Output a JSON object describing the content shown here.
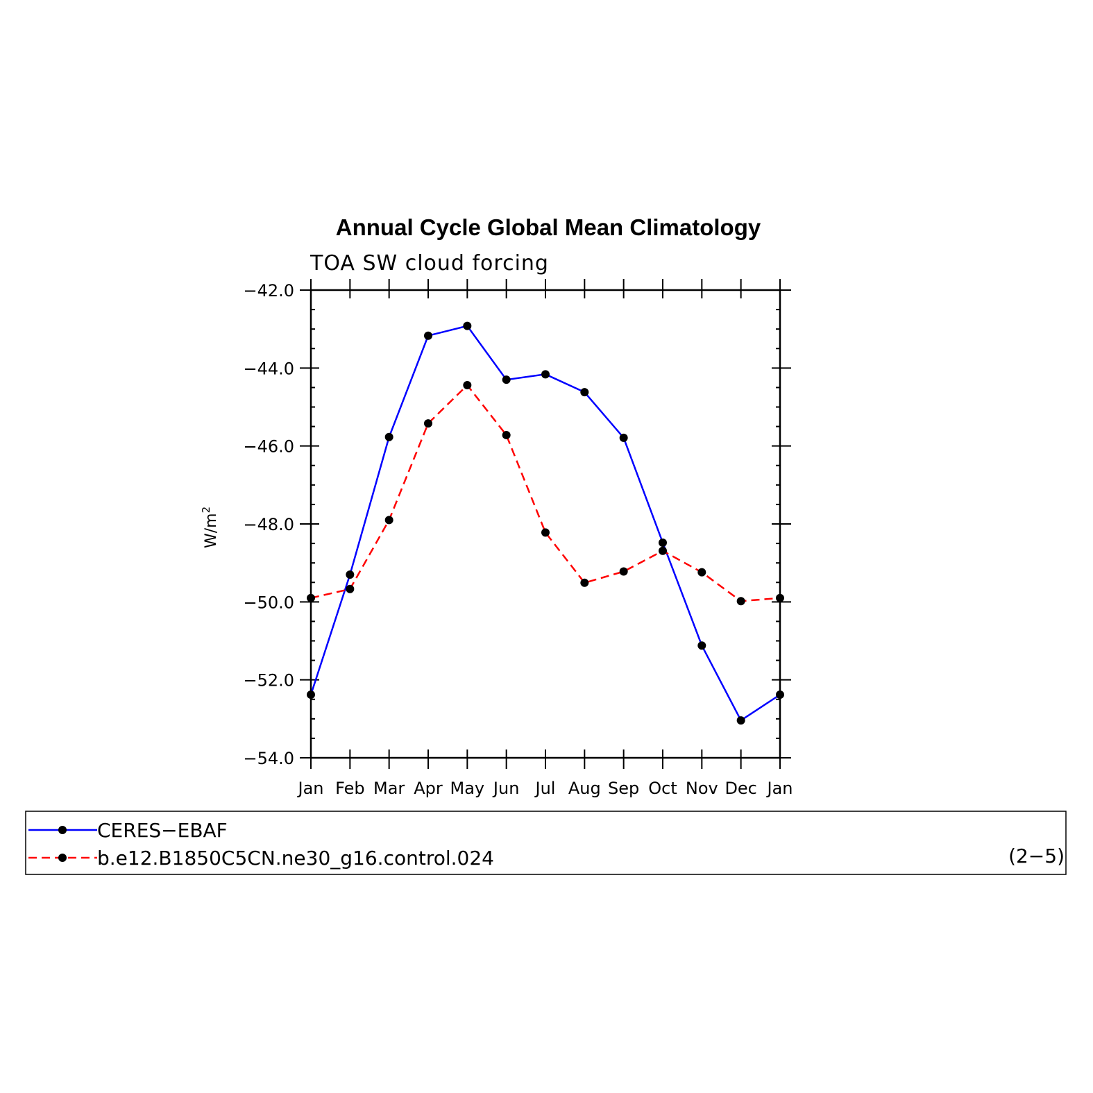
{
  "chart_data": {
    "type": "line",
    "title": "Annual Cycle Global Mean Climatology",
    "subtitle": "TOA SW cloud forcing",
    "ylabel": "W/m",
    "ylabel_sup": "2",
    "ylim": [
      -54.0,
      -42.0
    ],
    "yticks": [
      -42.0,
      -44.0,
      -46.0,
      -48.0,
      -50.0,
      -52.0,
      -54.0
    ],
    "ytick_labels": [
      "−42.0",
      "−44.0",
      "−46.0",
      "−48.0",
      "−50.0",
      "−52.0",
      "−54.0"
    ],
    "categories": [
      "Jan",
      "Feb",
      "Mar",
      "Apr",
      "May",
      "Jun",
      "Jul",
      "Aug",
      "Sep",
      "Oct",
      "Nov",
      "Dec",
      "Jan"
    ],
    "grid": false,
    "series": [
      {
        "name": "CERES−EBAF",
        "color": "#0000ff",
        "dash": "solid",
        "values": [
          -52.38,
          -49.3,
          -45.77,
          -43.17,
          -42.92,
          -44.3,
          -44.16,
          -44.62,
          -45.79,
          -48.48,
          -51.12,
          -53.04,
          -52.38
        ]
      },
      {
        "name": "b.e12.B1850C5CN.ne30_g16.control.024",
        "color": "#ff0000",
        "dash": "dashed",
        "values": [
          -49.9,
          -49.67,
          -47.9,
          -45.42,
          -44.44,
          -45.72,
          -48.22,
          -49.51,
          -49.22,
          -48.69,
          -49.24,
          -49.98,
          -49.9
        ]
      }
    ],
    "legend_position": "bottom",
    "panel_label": "(2−5)"
  }
}
